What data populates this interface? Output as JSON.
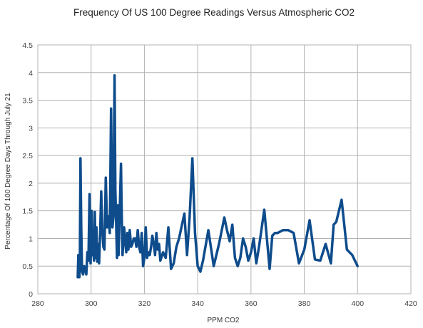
{
  "chart_data": {
    "type": "line",
    "title": "Frequency Of US 100 Degree Readings Versus Atmospheric CO2",
    "xlabel": "PPM CO2",
    "ylabel": "Percentage Of 100 Degree Days Through July 21",
    "xlim": [
      280,
      420
    ],
    "ylim": [
      0,
      4.5
    ],
    "xticks": [
      280,
      300,
      320,
      340,
      360,
      380,
      400,
      420
    ],
    "yticks": [
      0,
      0.5,
      1,
      1.5,
      2,
      2.5,
      3,
      3.5,
      4,
      4.5
    ],
    "xtick_labels": [
      "280",
      "300",
      "320",
      "340",
      "360",
      "380",
      "400",
      "420"
    ],
    "ytick_labels": [
      "0",
      "0.5",
      "1",
      "1.5",
      "2",
      "2.5",
      "3",
      "3.5",
      "4",
      "4.5"
    ],
    "grid": true,
    "legend": "none",
    "series_color": "#0e4c8c",
    "series": [
      {
        "x": [
          295.0,
          295.2,
          295.4,
          295.6,
          295.8,
          296.0,
          296.3,
          296.6,
          297.0,
          297.4,
          297.8,
          298.2,
          298.6,
          299.0,
          299.4,
          299.8,
          300.2,
          300.5,
          300.8,
          301.1,
          301.4,
          301.7,
          302.0,
          302.3,
          302.6,
          303.0,
          303.4,
          303.8,
          304.2,
          304.6,
          305.0,
          305.5,
          306.0,
          306.5,
          307.0,
          307.5,
          308.0,
          308.4,
          308.8,
          309.1,
          309.4,
          309.7,
          310.0,
          310.3,
          310.6,
          310.9,
          311.2,
          311.5,
          311.8,
          312.1,
          312.4,
          312.8,
          313.2,
          313.6,
          314.0,
          314.5,
          315.0,
          315.5,
          316.0,
          316.5,
          317.0,
          317.5,
          318.0,
          318.5,
          319.0,
          319.5,
          320.0,
          320.5,
          321.0,
          321.5,
          322.0,
          322.5,
          323.0,
          323.5,
          324.0,
          324.5,
          325.0,
          325.5,
          326.0,
          327.0,
          328.0,
          329.0,
          330.0,
          331.0,
          332.0,
          333.0,
          335.0,
          336.0,
          337.0,
          338.0,
          339.0,
          340.0,
          341.0,
          342.0,
          344.0,
          346.0,
          348.0,
          350.0,
          351.0,
          352.0,
          353.0,
          354.0,
          355.0,
          356.0,
          357.0,
          358.0,
          359.0,
          360.0,
          361.0,
          362.0,
          363.0,
          365.0,
          367.0,
          368.0,
          369.0,
          370.0,
          372.0,
          374.0,
          376.0,
          378.0,
          380.0,
          382.0,
          384.0,
          386.0,
          388.0,
          390.0,
          391.0,
          392.0,
          394.0,
          396.0,
          398.0,
          400.0
        ],
        "y": [
          0.3,
          0.7,
          0.4,
          0.3,
          0.65,
          2.45,
          1.2,
          0.4,
          0.35,
          0.5,
          0.45,
          0.35,
          0.75,
          0.6,
          1.8,
          0.55,
          1.5,
          0.7,
          0.8,
          0.6,
          1.48,
          0.65,
          1.2,
          0.58,
          0.9,
          0.55,
          1.1,
          1.85,
          1.15,
          0.85,
          0.8,
          2.1,
          1.2,
          1.4,
          1.1,
          3.35,
          1.2,
          1.4,
          3.95,
          1.9,
          1.3,
          0.65,
          1.6,
          0.7,
          1.25,
          1.75,
          2.35,
          1.4,
          0.7,
          0.95,
          1.2,
          0.95,
          0.75,
          1.1,
          0.8,
          1.15,
          0.85,
          0.9,
          1.0,
          1.0,
          0.85,
          1.15,
          0.85,
          0.75,
          1.1,
          0.5,
          0.65,
          1.2,
          0.65,
          0.75,
          0.7,
          0.85,
          1.05,
          0.9,
          0.7,
          1.1,
          0.8,
          0.9,
          0.6,
          0.75,
          0.65,
          1.2,
          0.45,
          0.55,
          0.85,
          1.0,
          1.45,
          0.7,
          1.4,
          2.45,
          1.1,
          0.5,
          0.4,
          0.6,
          1.15,
          0.5,
          0.9,
          1.38,
          1.15,
          0.95,
          1.25,
          0.65,
          0.5,
          0.65,
          1.0,
          0.85,
          0.6,
          0.75,
          1.0,
          0.55,
          0.85,
          1.52,
          0.45,
          1.05,
          1.1,
          1.1,
          1.15,
          1.15,
          1.1,
          0.55,
          0.8,
          1.33,
          0.62,
          0.6,
          0.9,
          0.55,
          1.25,
          1.3,
          1.7,
          0.8,
          0.7,
          0.5
        ]
      }
    ]
  }
}
